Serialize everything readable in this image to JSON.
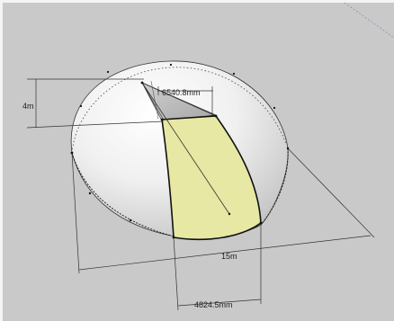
{
  "viewport": {
    "background": "#c9c9c9",
    "dome_fill": "#e9e9e9",
    "section_fill": "#e6e8a3",
    "edge_color": "#222222"
  },
  "dimensions": {
    "height_label": "4m",
    "top_offset_label": "6540.8mm",
    "span_label": "15m",
    "bottom_width_label": "4824.5mm"
  }
}
